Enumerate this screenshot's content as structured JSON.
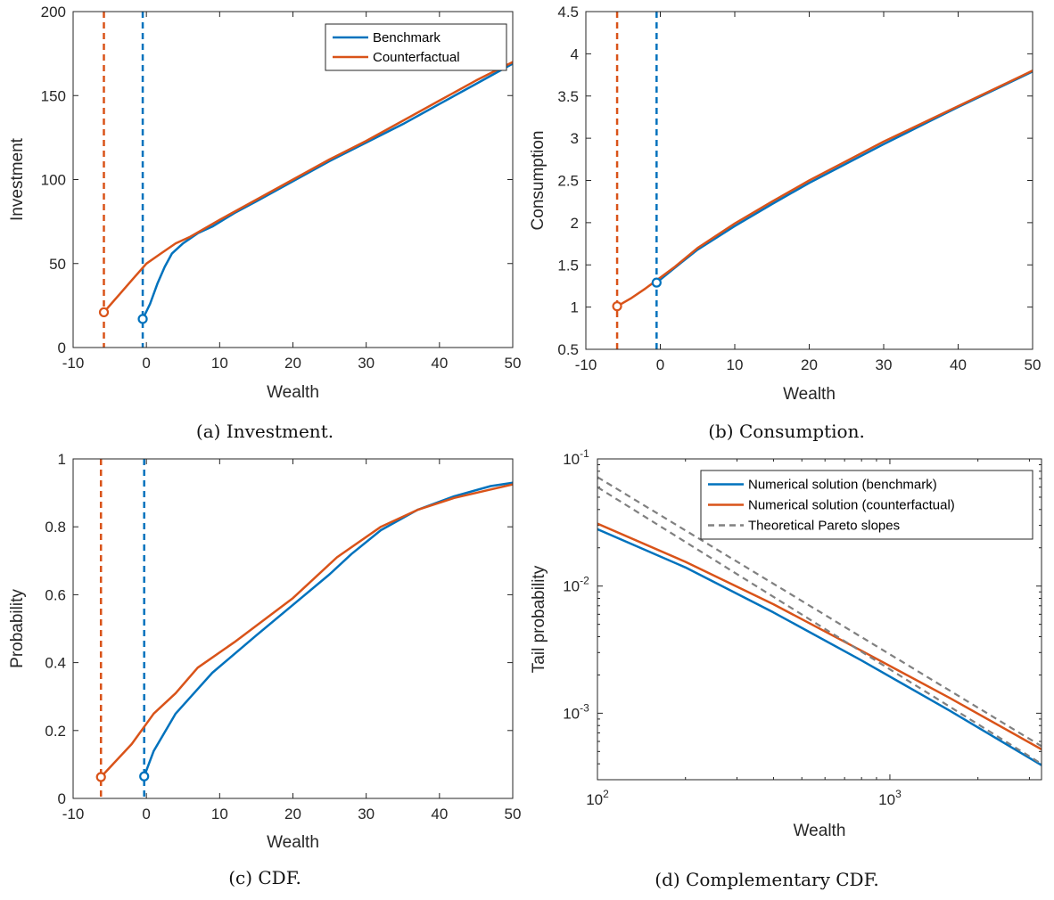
{
  "colors": {
    "benchmark": "#0072BD",
    "counterfactual": "#D95319",
    "theory": "#808080",
    "axis": "#262626"
  },
  "chart_data": [
    {
      "type": "line",
      "caption": "(a) Investment.",
      "xlabel": "Wealth",
      "ylabel": "Investment",
      "xlim": [
        -10,
        50
      ],
      "ylim": [
        0,
        200
      ],
      "xticks": [
        -10,
        0,
        10,
        20,
        30,
        40,
        50
      ],
      "yticks": [
        0,
        50,
        100,
        150,
        200
      ],
      "xticklabels": [
        "-10",
        "0",
        "10",
        "20",
        "30",
        "40",
        "50"
      ],
      "yticklabels": [
        "0",
        "50",
        "100",
        "150",
        "200"
      ],
      "legend": {
        "position": "top-right",
        "entries": [
          "Benchmark",
          "Counterfactual"
        ]
      },
      "vlines": [
        {
          "x": -5.8,
          "series": "counterfactual"
        },
        {
          "x": -0.5,
          "series": "benchmark"
        }
      ],
      "series": [
        {
          "name": "Benchmark",
          "color_key": "benchmark",
          "start_marker": true,
          "points": [
            [
              -0.5,
              17
            ],
            [
              0.5,
              26
            ],
            [
              1.5,
              38
            ],
            [
              2.5,
              48
            ],
            [
              3.5,
              56
            ],
            [
              5,
              62
            ],
            [
              7,
              68
            ],
            [
              9,
              72
            ],
            [
              12,
              80
            ],
            [
              15,
              87
            ],
            [
              20,
              99
            ],
            [
              25,
              111
            ],
            [
              30,
              122
            ],
            [
              35,
              133
            ],
            [
              40,
              145
            ],
            [
              45,
              157
            ],
            [
              50,
              169
            ]
          ]
        },
        {
          "name": "Counterfactual",
          "color_key": "counterfactual",
          "start_marker": true,
          "points": [
            [
              -5.8,
              21
            ],
            [
              -4,
              30
            ],
            [
              -2,
              40
            ],
            [
              0,
              50
            ],
            [
              2,
              56
            ],
            [
              4,
              62
            ],
            [
              6,
              66
            ],
            [
              10,
              76
            ],
            [
              15,
              88
            ],
            [
              20,
              100
            ],
            [
              25,
              112
            ],
            [
              30,
              123
            ],
            [
              35,
              135
            ],
            [
              40,
              147
            ],
            [
              45,
              159
            ],
            [
              50,
              170
            ]
          ]
        }
      ]
    },
    {
      "type": "line",
      "caption": "(b) Consumption.",
      "xlabel": "Wealth",
      "ylabel": "Consumption",
      "xlim": [
        -10,
        50
      ],
      "ylim": [
        0.5,
        4.5
      ],
      "xticks": [
        -10,
        0,
        10,
        20,
        30,
        40,
        50
      ],
      "yticks": [
        0.5,
        1,
        1.5,
        2,
        2.5,
        3,
        3.5,
        4,
        4.5
      ],
      "xticklabels": [
        "-10",
        "0",
        "10",
        "20",
        "30",
        "40",
        "50"
      ],
      "yticklabels": [
        "0.5",
        "1",
        "1.5",
        "2",
        "2.5",
        "3",
        "3.5",
        "4",
        "4.5"
      ],
      "vlines": [
        {
          "x": -5.8,
          "series": "counterfactual"
        },
        {
          "x": -0.5,
          "series": "benchmark"
        }
      ],
      "series": [
        {
          "name": "Benchmark",
          "color_key": "benchmark",
          "start_marker": true,
          "points": [
            [
              -0.5,
              1.29
            ],
            [
              2,
              1.47
            ],
            [
              5,
              1.68
            ],
            [
              10,
              1.96
            ],
            [
              15,
              2.22
            ],
            [
              20,
              2.47
            ],
            [
              25,
              2.7
            ],
            [
              30,
              2.93
            ],
            [
              35,
              3.15
            ],
            [
              40,
              3.37
            ],
            [
              45,
              3.58
            ],
            [
              50,
              3.79
            ]
          ]
        },
        {
          "name": "Counterfactual",
          "color_key": "counterfactual",
          "start_marker": true,
          "points": [
            [
              -5.8,
              1.01
            ],
            [
              -4,
              1.1
            ],
            [
              -2,
              1.22
            ],
            [
              0,
              1.35
            ],
            [
              2,
              1.48
            ],
            [
              5,
              1.7
            ],
            [
              10,
              1.99
            ],
            [
              15,
              2.25
            ],
            [
              20,
              2.5
            ],
            [
              25,
              2.73
            ],
            [
              30,
              2.96
            ],
            [
              35,
              3.17
            ],
            [
              40,
              3.38
            ],
            [
              45,
              3.59
            ],
            [
              50,
              3.8
            ]
          ]
        }
      ]
    },
    {
      "type": "line",
      "caption": "(c) CDF.",
      "xlabel": "Wealth",
      "ylabel": "Probability",
      "xlim": [
        -10,
        50
      ],
      "ylim": [
        0,
        1
      ],
      "xticks": [
        -10,
        0,
        10,
        20,
        30,
        40,
        50
      ],
      "yticks": [
        0,
        0.2,
        0.4,
        0.6,
        0.8,
        1
      ],
      "xticklabels": [
        "-10",
        "0",
        "10",
        "20",
        "30",
        "40",
        "50"
      ],
      "yticklabels": [
        "0",
        "0.2",
        "0.4",
        "0.6",
        "0.8",
        "1"
      ],
      "vlines": [
        {
          "x": -6.2,
          "series": "counterfactual"
        },
        {
          "x": -0.3,
          "series": "benchmark"
        }
      ],
      "series": [
        {
          "name": "Benchmark",
          "color_key": "benchmark",
          "start_marker": true,
          "points": [
            [
              -0.3,
              0.065
            ],
            [
              1,
              0.14
            ],
            [
              4,
              0.25
            ],
            [
              9,
              0.37
            ],
            [
              15,
              0.48
            ],
            [
              20,
              0.57
            ],
            [
              25,
              0.66
            ],
            [
              28,
              0.72
            ],
            [
              32,
              0.79
            ],
            [
              37,
              0.85
            ],
            [
              42,
              0.89
            ],
            [
              47,
              0.92
            ],
            [
              50,
              0.93
            ]
          ]
        },
        {
          "name": "Counterfactual",
          "color_key": "counterfactual",
          "start_marker": true,
          "points": [
            [
              -6.2,
              0.063
            ],
            [
              -2,
              0.16
            ],
            [
              0,
              0.22
            ],
            [
              1,
              0.25
            ],
            [
              4,
              0.31
            ],
            [
              7,
              0.385
            ],
            [
              12,
              0.46
            ],
            [
              20,
              0.59
            ],
            [
              26,
              0.71
            ],
            [
              32,
              0.8
            ],
            [
              37,
              0.85
            ],
            [
              42,
              0.885
            ],
            [
              47,
              0.91
            ],
            [
              50,
              0.925
            ]
          ]
        }
      ]
    },
    {
      "type": "line",
      "caption": "(d) Complementary CDF.",
      "xlabel": "Wealth",
      "ylabel": "Tail probability",
      "xscale": "log",
      "yscale": "log",
      "xlim": [
        100,
        3300
      ],
      "ylim": [
        0.0003,
        0.1
      ],
      "xticks": [
        100,
        1000
      ],
      "yticks": [
        0.001,
        0.01,
        0.1
      ],
      "xticklabels": [
        "10^2",
        "10^3"
      ],
      "yticklabels": [
        "10^-3",
        "10^-2",
        "10^-1"
      ],
      "legend": {
        "position": "top-right",
        "entries": [
          "Numerical solution (benchmark)",
          "Numerical solution (counterfactual)",
          "Theoretical Pareto slopes"
        ]
      },
      "series": [
        {
          "name": "Numerical solution (benchmark)",
          "color_key": "benchmark",
          "dash": false,
          "points": [
            [
              100,
              0.028
            ],
            [
              200,
              0.014
            ],
            [
              400,
              0.0062
            ],
            [
              800,
              0.0026
            ],
            [
              1600,
              0.00105
            ],
            [
              3300,
              0.00039
            ]
          ]
        },
        {
          "name": "Numerical solution (counterfactual)",
          "color_key": "counterfactual",
          "dash": false,
          "points": [
            [
              100,
              0.031
            ],
            [
              200,
              0.0155
            ],
            [
              400,
              0.0072
            ],
            [
              800,
              0.0031
            ],
            [
              1600,
              0.00132
            ],
            [
              3300,
              0.00052
            ]
          ]
        },
        {
          "name": "Theoretical Pareto slopes",
          "color_key": "theory",
          "dash": true,
          "points": [
            [
              100,
              0.072
            ],
            [
              3300,
              0.00055
            ]
          ]
        },
        {
          "name": "",
          "color_key": "theory",
          "dash": true,
          "legend": false,
          "points": [
            [
              100,
              0.06
            ],
            [
              3300,
              0.0004
            ]
          ]
        }
      ]
    }
  ]
}
